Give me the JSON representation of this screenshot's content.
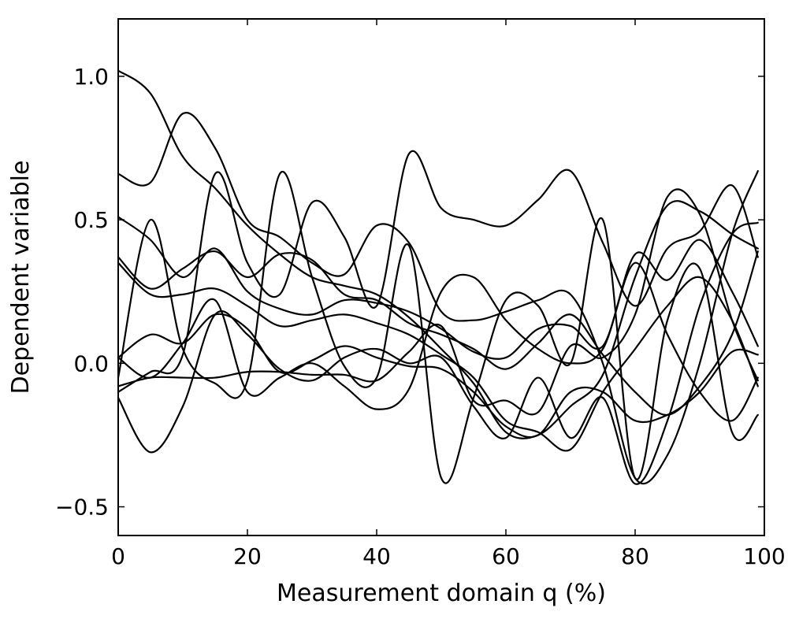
{
  "chart_data": {
    "type": "line",
    "xlabel": "Measurement domain q (%)",
    "ylabel": "Dependent variable",
    "xlim": [
      0,
      100
    ],
    "ylim": [
      -0.6,
      1.2
    ],
    "xticks": [
      "0",
      "20",
      "40",
      "60",
      "80",
      "100"
    ],
    "xtick_values": [
      0,
      20,
      40,
      60,
      80,
      100
    ],
    "yticks": [
      "−0.5",
      "0.0",
      "0.5",
      "1.0"
    ],
    "ytick_values": [
      -0.5,
      0,
      0.5,
      1.0
    ],
    "grid": false,
    "line_color": "#000000",
    "x": [
      0,
      5,
      10,
      15,
      20,
      25,
      30,
      35,
      40,
      45,
      50,
      55,
      60,
      65,
      70,
      75,
      80,
      85,
      90,
      95,
      99
    ],
    "series": [
      {
        "values": [
          1.02,
          0.94,
          0.72,
          0.61,
          0.48,
          0.38,
          0.3,
          0.27,
          0.24,
          0.16,
          0.05,
          -0.07,
          -0.24,
          -0.25,
          -0.15,
          -0.04,
          0.3,
          0.55,
          0.53,
          0.45,
          0.4
        ]
      },
      {
        "values": [
          0.66,
          0.63,
          0.87,
          0.75,
          0.5,
          0.44,
          0.35,
          0.31,
          0.48,
          0.42,
          0.18,
          0.15,
          0.18,
          0.22,
          0.24,
          0.0,
          -0.4,
          -0.32,
          0.0,
          0.45,
          0.67
        ]
      },
      {
        "values": [
          0.37,
          0.26,
          0.33,
          0.39,
          0.3,
          0.38,
          0.36,
          0.24,
          0.22,
          0.14,
          0.1,
          0.05,
          -0.02,
          0.07,
          0.17,
          0.03,
          -0.1,
          -0.18,
          -0.08,
          0.1,
          0.39
        ]
      },
      {
        "values": [
          0.51,
          0.43,
          0.3,
          0.4,
          0.25,
          0.19,
          0.17,
          0.22,
          0.21,
          0.18,
          0.12,
          0.04,
          0.02,
          0.12,
          0.13,
          0.06,
          0.38,
          0.29,
          0.43,
          0.25,
          0.06
        ]
      },
      {
        "values": [
          0.35,
          0.24,
          0.24,
          0.26,
          0.2,
          0.13,
          0.15,
          0.17,
          0.14,
          0.1,
          0.03,
          -0.05,
          -0.2,
          -0.24,
          -0.3,
          -0.1,
          0.05,
          0.2,
          0.3,
          0.15,
          -0.08
        ]
      },
      {
        "values": [
          0.02,
          -0.05,
          0.07,
          0.22,
          -0.1,
          -0.05,
          0.0,
          -0.08,
          -0.16,
          -0.09,
          0.25,
          0.3,
          0.15,
          0.05,
          0.0,
          0.05,
          0.35,
          0.1,
          -0.1,
          -0.2,
          -0.05
        ]
      },
      {
        "values": [
          -0.12,
          -0.31,
          -0.15,
          0.17,
          0.1,
          -0.02,
          -0.06,
          0.02,
          0.05,
          0.0,
          0.02,
          -0.15,
          -0.26,
          -0.05,
          -0.26,
          -0.12,
          -0.42,
          -0.2,
          0.2,
          0.45,
          0.49
        ]
      },
      {
        "values": [
          0.02,
          0.1,
          0.07,
          0.17,
          0.12,
          -0.03,
          0.01,
          0.06,
          0.02,
          -0.01,
          -0.02,
          -0.1,
          -0.22,
          -0.25,
          -0.1,
          -0.1,
          -0.2,
          -0.18,
          -0.1,
          0.04,
          0.03
        ]
      },
      {
        "values": [
          -0.1,
          -0.03,
          0.03,
          0.66,
          0.35,
          0.24,
          0.56,
          0.44,
          0.2,
          0.73,
          0.54,
          0.5,
          0.48,
          0.57,
          0.67,
          0.42,
          0.2,
          0.4,
          0.46,
          0.62,
          0.37
        ]
      },
      {
        "values": [
          -0.05,
          0.5,
          0.05,
          -0.07,
          -0.06,
          0.66,
          0.3,
          -0.01,
          -0.05,
          0.41,
          -0.4,
          -0.12,
          0.22,
          0.2,
          0.0,
          0.5,
          -0.4,
          0.15,
          0.33,
          -0.24,
          -0.18
        ]
      },
      {
        "values": [
          -0.08,
          -0.05,
          -0.05,
          -0.05,
          -0.03,
          -0.03,
          -0.04,
          -0.04,
          -0.06,
          0.04,
          0.13,
          -0.13,
          -0.13,
          -0.17,
          0.06,
          0.02,
          0.17,
          0.58,
          0.52,
          0.15,
          -0.06
        ]
      }
    ]
  }
}
